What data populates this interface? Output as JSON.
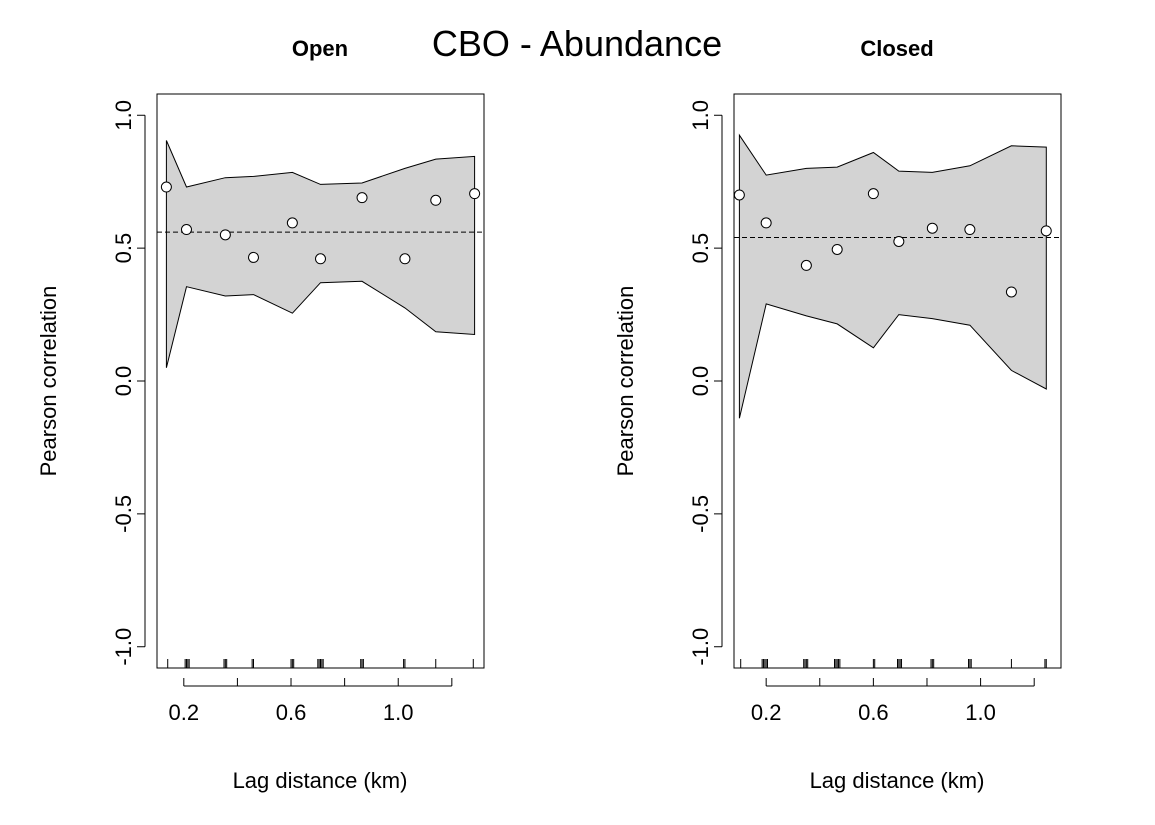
{
  "figure": {
    "title": "CBO - Abundance"
  },
  "chart_data": [
    {
      "type": "scatter",
      "title": "Open",
      "xlabel": "Lag distance (km)",
      "ylabel": "Pearson correlation",
      "xlim": [
        0.1,
        1.32
      ],
      "ylim": [
        -1.08,
        1.08
      ],
      "xticks": [
        0.2,
        0.4,
        0.6,
        0.8,
        1.0,
        1.2
      ],
      "xtick_labels": [
        "0.2",
        "",
        "0.6",
        "",
        "1.0",
        ""
      ],
      "yticks": [
        -1.0,
        -0.5,
        0.0,
        0.5,
        1.0
      ],
      "ytick_labels": [
        "-1.0",
        "-0.5",
        "0.0",
        "0.5",
        "1.0"
      ],
      "reference_line": 0.56,
      "points": [
        {
          "x": 0.135,
          "y": 0.73
        },
        {
          "x": 0.21,
          "y": 0.57
        },
        {
          "x": 0.355,
          "y": 0.55
        },
        {
          "x": 0.46,
          "y": 0.465
        },
        {
          "x": 0.605,
          "y": 0.595
        },
        {
          "x": 0.71,
          "y": 0.46
        },
        {
          "x": 0.865,
          "y": 0.69
        },
        {
          "x": 1.025,
          "y": 0.46
        },
        {
          "x": 1.14,
          "y": 0.68
        },
        {
          "x": 1.285,
          "y": 0.705
        }
      ],
      "envelope": {
        "x": [
          0.135,
          0.21,
          0.355,
          0.46,
          0.605,
          0.71,
          0.865,
          1.025,
          1.14,
          1.285
        ],
        "upper": [
          0.905,
          0.73,
          0.765,
          0.77,
          0.785,
          0.74,
          0.745,
          0.8,
          0.835,
          0.845
        ],
        "lower": [
          0.05,
          0.355,
          0.32,
          0.325,
          0.255,
          0.37,
          0.375,
          0.275,
          0.185,
          0.175
        ]
      },
      "rug": [
        0.14,
        0.205,
        0.21,
        0.215,
        0.22,
        0.35,
        0.355,
        0.36,
        0.455,
        0.46,
        0.6,
        0.605,
        0.61,
        0.7,
        0.705,
        0.71,
        0.715,
        0.72,
        0.86,
        0.865,
        0.87,
        1.02,
        1.025,
        1.14,
        1.28
      ],
      "colors": {
        "envelope": "#d3d3d3",
        "points": "#ffffff",
        "line": "#000000"
      }
    },
    {
      "type": "scatter",
      "title": "Closed",
      "xlabel": "Lag distance (km)",
      "ylabel": "Pearson correlation",
      "xlim": [
        0.08,
        1.3
      ],
      "ylim": [
        -1.08,
        1.08
      ],
      "xticks": [
        0.2,
        0.4,
        0.6,
        0.8,
        1.0,
        1.2
      ],
      "xtick_labels": [
        "0.2",
        "",
        "0.6",
        "",
        "1.0",
        ""
      ],
      "yticks": [
        -1.0,
        -0.5,
        0.0,
        0.5,
        1.0
      ],
      "ytick_labels": [
        "-1.0",
        "-0.5",
        "0.0",
        "0.5",
        "1.0"
      ],
      "reference_line": 0.54,
      "points": [
        {
          "x": 0.1,
          "y": 0.7
        },
        {
          "x": 0.2,
          "y": 0.595
        },
        {
          "x": 0.35,
          "y": 0.435
        },
        {
          "x": 0.465,
          "y": 0.495
        },
        {
          "x": 0.6,
          "y": 0.705
        },
        {
          "x": 0.695,
          "y": 0.525
        },
        {
          "x": 0.82,
          "y": 0.575
        },
        {
          "x": 0.96,
          "y": 0.57
        },
        {
          "x": 1.115,
          "y": 0.335
        },
        {
          "x": 1.245,
          "y": 0.565
        }
      ],
      "envelope": {
        "x": [
          0.1,
          0.2,
          0.35,
          0.465,
          0.6,
          0.695,
          0.82,
          0.96,
          1.115,
          1.245
        ],
        "upper": [
          0.925,
          0.775,
          0.8,
          0.805,
          0.86,
          0.79,
          0.785,
          0.81,
          0.885,
          0.88
        ],
        "lower": [
          -0.14,
          0.29,
          0.245,
          0.215,
          0.125,
          0.25,
          0.235,
          0.21,
          0.04,
          -0.03
        ]
      },
      "rug": [
        0.105,
        0.185,
        0.19,
        0.195,
        0.2,
        0.205,
        0.34,
        0.345,
        0.35,
        0.355,
        0.455,
        0.46,
        0.465,
        0.47,
        0.475,
        0.6,
        0.605,
        0.69,
        0.695,
        0.7,
        0.705,
        0.815,
        0.82,
        0.825,
        0.955,
        0.96,
        0.965,
        1.115,
        1.24,
        1.245
      ]
    }
  ]
}
